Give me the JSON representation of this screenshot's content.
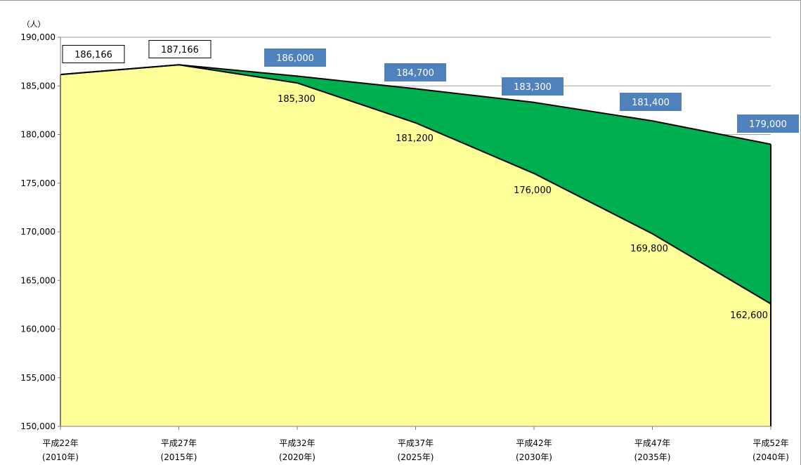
{
  "chart_data": {
    "type": "area",
    "y_unit": "（人）",
    "ylim": [
      150000,
      190000
    ],
    "ytick_step": 5000,
    "grid": true,
    "legend": "none",
    "categories": [
      [
        "平成22年",
        "(2010年)"
      ],
      [
        "平成27年",
        "(2015年)"
      ],
      [
        "平成32年",
        "(2020年)"
      ],
      [
        "平成37年",
        "(2025年)"
      ],
      [
        "平成42年",
        "(2030年)"
      ],
      [
        "平成47年",
        "(2035年)"
      ],
      [
        "平成52年",
        "(2040年)"
      ]
    ],
    "series": [
      {
        "values": [
          186166,
          187166,
          185300,
          181200,
          176000,
          169800,
          162600
        ],
        "labels": [
          null,
          null,
          "185,300",
          "181,200",
          "176,000",
          "169,800",
          "162,600"
        ],
        "color": "#FFFF99"
      },
      {
        "values": [
          186166,
          187166,
          186000,
          184700,
          183300,
          181400,
          179000
        ],
        "labels": [
          null,
          null,
          "186,000",
          "184,700",
          "183,300",
          "181,400",
          "179,000"
        ],
        "color": "#00B050"
      }
    ],
    "actual_labels": [
      "186,166",
      "187,166"
    ],
    "callout_color": "#4F81BD",
    "line_color": "#000000",
    "grid_color": "#A6A6A6"
  }
}
